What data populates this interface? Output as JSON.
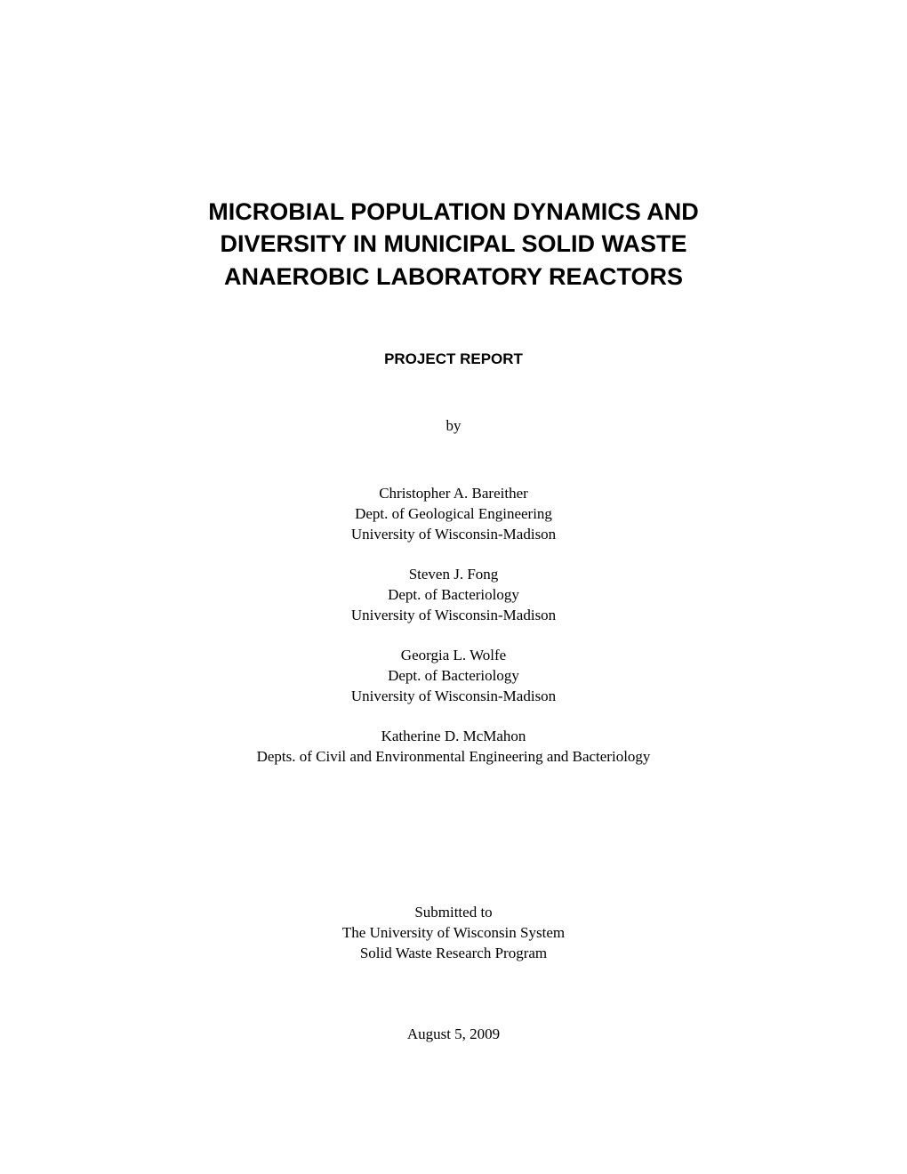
{
  "title": {
    "line1": "MICROBIAL POPULATION DYNAMICS AND",
    "line2": "DIVERSITY IN MUNICIPAL SOLID WASTE",
    "line3": "ANAEROBIC LABORATORY REACTORS"
  },
  "report_label": "PROJECT REPORT",
  "by_text": "by",
  "authors": [
    {
      "name": "Christopher A. Bareither",
      "dept": "Dept. of Geological Engineering",
      "univ": "University of Wisconsin-Madison"
    },
    {
      "name": "Steven J. Fong",
      "dept": "Dept. of Bacteriology",
      "univ": "University of Wisconsin-Madison"
    },
    {
      "name": "Georgia L. Wolfe",
      "dept": "Dept. of Bacteriology",
      "univ": "University of Wisconsin-Madison"
    },
    {
      "name": "Katherine D. McMahon",
      "dept": "Depts. of Civil and Environmental Engineering and Bacteriology",
      "univ": ""
    }
  ],
  "submitted": {
    "line1": "Submitted to",
    "line2": "The University of Wisconsin System",
    "line3": "Solid Waste Research Program"
  },
  "date": "August 5, 2009",
  "colors": {
    "background": "#ffffff",
    "text": "#000000"
  },
  "typography": {
    "title_fontsize": 27,
    "title_weight": "bold",
    "body_fontsize": 17,
    "title_family": "Arial",
    "body_family": "Times New Roman"
  }
}
